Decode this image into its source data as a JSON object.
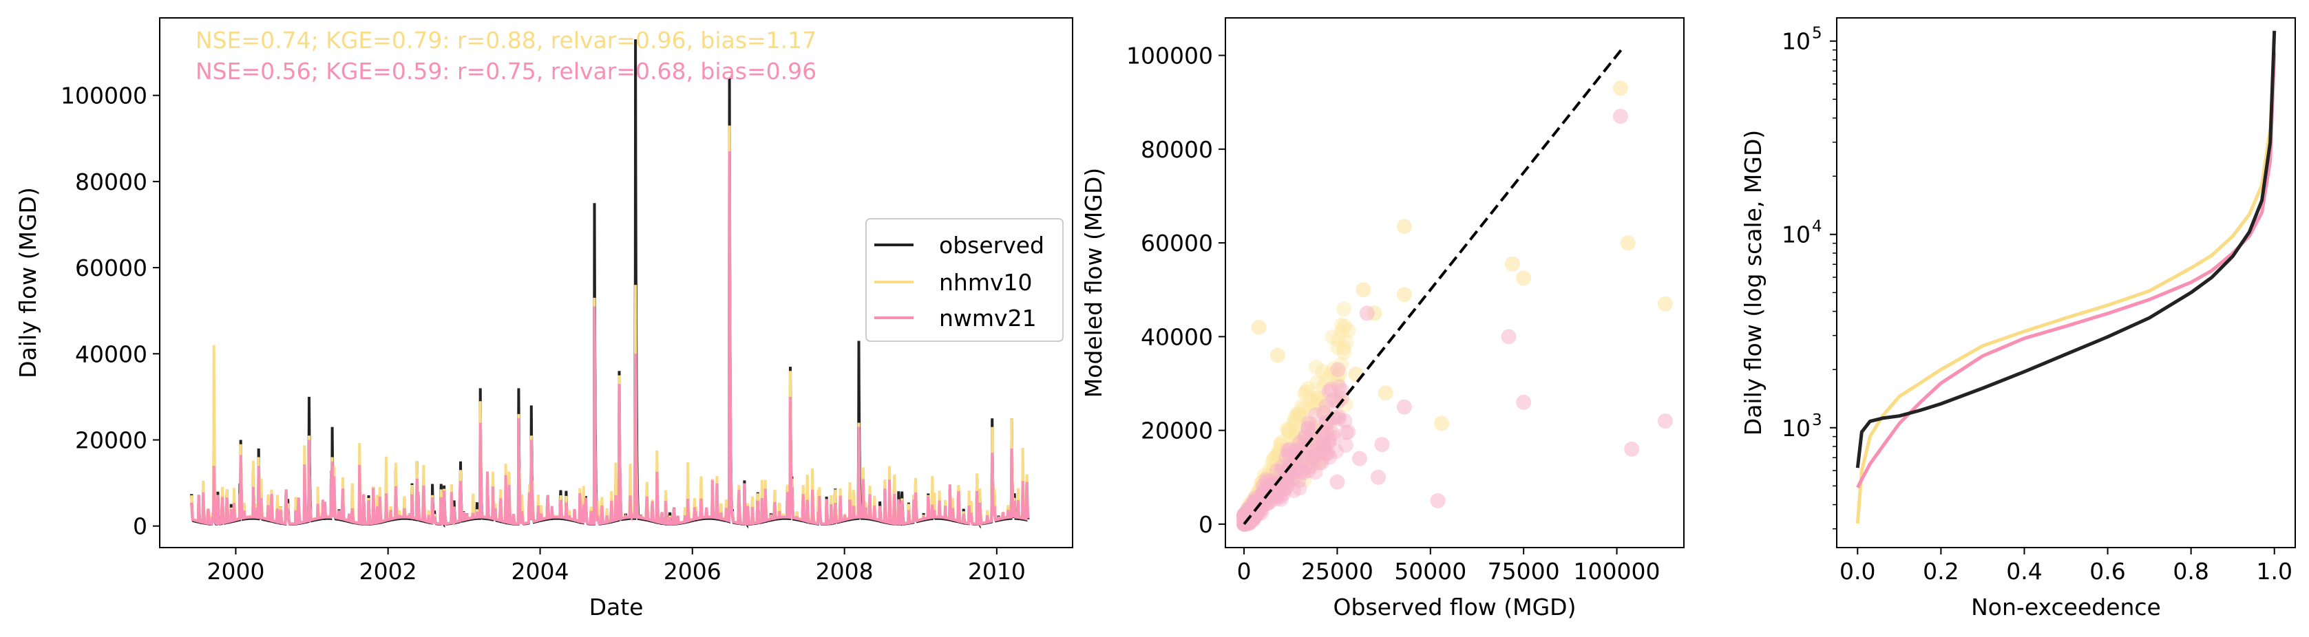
{
  "colors": {
    "observed": "#222222",
    "nhmv10": "#F9DC84",
    "nwmv21": "#F98FB4",
    "nhmv10_scatter": "#FCE6A4",
    "nwmv21_scatter": "#F7B2CA"
  },
  "chart_data": [
    {
      "type": "line",
      "xlabel": "Date",
      "ylabel": "Daily flow (MGD)",
      "x_range": [
        "1999-01-01",
        "2010-12-31"
      ],
      "ylim": [
        -5000,
        118000
      ],
      "x_ticks": [
        "2000",
        "2002",
        "2004",
        "2006",
        "2008",
        "2010"
      ],
      "y_ticks": [
        "0",
        "20000",
        "40000",
        "60000",
        "80000",
        "100000"
      ],
      "annotations": [
        {
          "text": "NSE=0.74; KGE=0.79: r=0.88, relvar=0.96, bias=1.17",
          "series": "nhmv10"
        },
        {
          "text": "NSE=0.56; KGE=0.59: r=0.75, relvar=0.68, bias=0.96",
          "series": "nwmv21"
        }
      ],
      "legend": {
        "position": "center-right",
        "entries": [
          "observed",
          "nhmv10",
          "nwmv21"
        ]
      },
      "peaks": [
        {
          "date": "1999-09-18",
          "observed": 8000,
          "nhmv10": 42000,
          "nwmv21": 14000
        },
        {
          "date": "2000-01-25",
          "observed": 20000,
          "nhmv10": 19000,
          "nwmv21": 16500
        },
        {
          "date": "2000-04-20",
          "observed": 18000,
          "nhmv10": 16000,
          "nwmv21": 14000
        },
        {
          "date": "2000-12-18",
          "observed": 30000,
          "nhmv10": 21000,
          "nwmv21": 20000
        },
        {
          "date": "2001-04-08",
          "observed": 23000,
          "nhmv10": 16000,
          "nwmv21": 15000
        },
        {
          "date": "2002-05-20",
          "observed": 15000,
          "nhmv10": 15000,
          "nwmv21": 11000
        },
        {
          "date": "2002-12-15",
          "observed": 15000,
          "nhmv10": 13000,
          "nwmv21": 10000
        },
        {
          "date": "2003-03-20",
          "observed": 32000,
          "nhmv10": 29000,
          "nwmv21": 24000
        },
        {
          "date": "2003-09-20",
          "observed": 32000,
          "nhmv10": 26000,
          "nwmv21": 25000
        },
        {
          "date": "2003-11-20",
          "observed": 28000,
          "nhmv10": 21000,
          "nwmv21": 20000
        },
        {
          "date": "2004-09-18",
          "observed": 75000,
          "nhmv10": 53000,
          "nwmv21": 51000
        },
        {
          "date": "2005-01-15",
          "observed": 36000,
          "nhmv10": 35000,
          "nwmv21": 33000
        },
        {
          "date": "2005-04-03",
          "observed": 113000,
          "nhmv10": 56000,
          "nwmv21": 40000
        },
        {
          "date": "2006-06-28",
          "observed": 104000,
          "nhmv10": 93000,
          "nwmv21": 87000
        },
        {
          "date": "2007-04-16",
          "observed": 37000,
          "nhmv10": 36000,
          "nwmv21": 30000
        },
        {
          "date": "2008-03-10",
          "observed": 43000,
          "nhmv10": 24000,
          "nwmv21": 23000
        },
        {
          "date": "2009-12-10",
          "observed": 25000,
          "nhmv10": 23000,
          "nwmv21": 17000
        },
        {
          "date": "2010-03-14",
          "observed": 25000,
          "nhmv10": 25000,
          "nwmv21": 18000
        }
      ]
    },
    {
      "type": "scatter",
      "xlabel": "Observed flow (MGD)",
      "ylabel": "Modeled flow (MGD)",
      "xlim": [
        -5000,
        118000
      ],
      "ylim": [
        -5000,
        108000
      ],
      "x_ticks": [
        "0",
        "25000",
        "50000",
        "75000",
        "100000"
      ],
      "y_ticks": [
        "0",
        "20000",
        "40000",
        "60000",
        "80000",
        "100000"
      ],
      "one_to_one_line": [
        [
          0,
          0
        ],
        [
          102000,
          102000
        ]
      ],
      "series": [
        {
          "name": "nhmv10",
          "points": [
            [
              101000,
              93000
            ],
            [
              103000,
              60000
            ],
            [
              113000,
              47000
            ],
            [
              75000,
              52500
            ],
            [
              72000,
              55500
            ],
            [
              43000,
              63500
            ],
            [
              43000,
              49000
            ],
            [
              32000,
              50000
            ],
            [
              35000,
              45000
            ],
            [
              4000,
              42000
            ],
            [
              9000,
              36000
            ],
            [
              53000,
              21500
            ],
            [
              30000,
              32000
            ],
            [
              38000,
              28000
            ],
            [
              25000,
              30000
            ],
            [
              20000,
              27000
            ],
            [
              15000,
              23000
            ],
            [
              12000,
              20000
            ],
            [
              8000,
              14000
            ],
            [
              5000,
              9000
            ],
            [
              3000,
              5000
            ],
            [
              1500,
              2500
            ]
          ]
        },
        {
          "name": "nwmv21",
          "points": [
            [
              101000,
              87000
            ],
            [
              104000,
              16000
            ],
            [
              113000,
              22000
            ],
            [
              75000,
              26000
            ],
            [
              71000,
              40000
            ],
            [
              52000,
              5000
            ],
            [
              43000,
              25000
            ],
            [
              37000,
              17000
            ],
            [
              33000,
              45000
            ],
            [
              36000,
              10000
            ],
            [
              31000,
              14000
            ],
            [
              25000,
              9000
            ],
            [
              21000,
              19000
            ],
            [
              16000,
              11000
            ],
            [
              12000,
              15000
            ],
            [
              9000,
              8000
            ],
            [
              6000,
              6000
            ],
            [
              3500,
              3500
            ],
            [
              2000,
              2200
            ],
            [
              1000,
              1200
            ]
          ]
        }
      ]
    },
    {
      "type": "line",
      "xlabel": "Non-exceedence",
      "ylabel": "Daily flow (log scale, MGD)",
      "y_scale": "log",
      "xlim": [
        -0.05,
        1.05
      ],
      "ylim_log10": [
        2.38,
        5.12
      ],
      "x_ticks": [
        "0.0",
        "0.2",
        "0.4",
        "0.6",
        "0.8",
        "1.0"
      ],
      "y_ticks": [
        {
          "value": 1000,
          "base": "10",
          "exp": "3"
        },
        {
          "value": 10000,
          "base": "10",
          "exp": "4"
        },
        {
          "value": 100000,
          "base": "10",
          "exp": "5"
        }
      ],
      "x": [
        0.0,
        0.01,
        0.03,
        0.06,
        0.1,
        0.15,
        0.2,
        0.3,
        0.4,
        0.5,
        0.6,
        0.7,
        0.8,
        0.85,
        0.9,
        0.94,
        0.97,
        0.99,
        1.0
      ],
      "series": [
        {
          "name": "observed",
          "values": [
            620,
            950,
            1080,
            1120,
            1150,
            1230,
            1330,
            1600,
            1950,
            2400,
            2950,
            3700,
            5000,
            6000,
            7700,
            10300,
            15000,
            30000,
            113000
          ]
        },
        {
          "name": "nhmv10",
          "values": [
            320,
            600,
            900,
            1150,
            1450,
            1700,
            2000,
            2650,
            3150,
            3700,
            4300,
            5100,
            6700,
            7800,
            9800,
            12700,
            18000,
            35000,
            90000
          ]
        },
        {
          "name": "nwmv21",
          "values": [
            490,
            540,
            650,
            800,
            1050,
            1350,
            1700,
            2350,
            2900,
            3350,
            3900,
            4600,
            5650,
            6500,
            8000,
            9800,
            13000,
            24000,
            87000
          ]
        }
      ]
    }
  ]
}
